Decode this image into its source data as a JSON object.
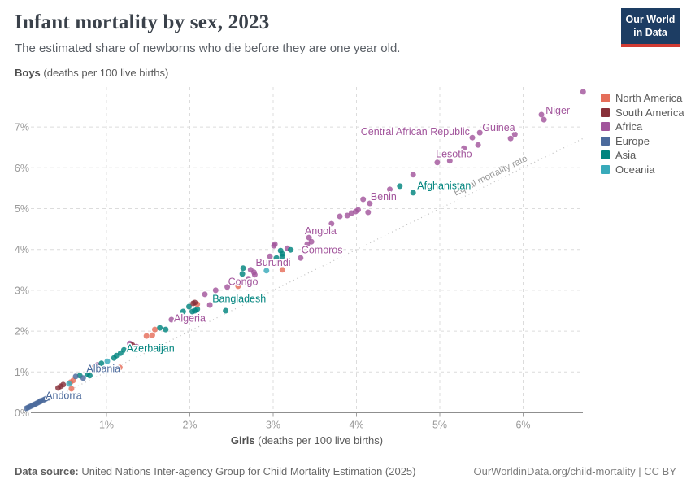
{
  "header": {
    "title": "Infant mortality by sex, 2023",
    "subtitle": "The estimated share of newborns who die before they are one year old.",
    "logo": {
      "line1": "Our World",
      "line2": "in Data"
    }
  },
  "legend": {
    "items": [
      {
        "label": "North America",
        "color": "#E56E5A"
      },
      {
        "label": "South America",
        "color": "#883039"
      },
      {
        "label": "Africa",
        "color": "#A2559C"
      },
      {
        "label": "Europe",
        "color": "#4C6A9C"
      },
      {
        "label": "Asia",
        "color": "#00847E"
      },
      {
        "label": "Oceania",
        "color": "#38AABA"
      }
    ]
  },
  "chart_data": {
    "type": "scatter",
    "title": "Infant mortality by sex, 2023",
    "xlabel": "Girls (deaths per 100 live births)",
    "xlabel_bold": "Girls",
    "xlabel_rest": " (deaths per 100 live births)",
    "ylabel": "Boys (deaths per 100 live births)",
    "ylabel_bold": "Boys",
    "ylabel_rest": " (deaths per 100 live births)",
    "xlim": [
      0,
      6.8
    ],
    "ylim": [
      0,
      7.9
    ],
    "x_ticks": [
      1,
      2,
      3,
      4,
      5,
      6
    ],
    "x_tick_labels": [
      "1%",
      "2%",
      "3%",
      "4%",
      "5%",
      "6%"
    ],
    "y_ticks": [
      0,
      1,
      2,
      3,
      4,
      5,
      6,
      7
    ],
    "y_tick_labels": [
      "0%",
      "1%",
      "2%",
      "3%",
      "4%",
      "5%",
      "6%",
      "7%"
    ],
    "grid": true,
    "legend_position": "right",
    "equal_line": {
      "label": "Equal mortality rate",
      "from": 0.22,
      "to": 6.73
    },
    "series": [
      {
        "name": "Africa",
        "color": "#A2559C",
        "points": [
          [
            6.72,
            7.86
          ],
          [
            6.22,
            7.3
          ],
          [
            6.25,
            7.18
          ],
          [
            5.85,
            6.72
          ],
          [
            5.9,
            6.82
          ],
          [
            5.48,
            6.86
          ],
          [
            5.39,
            6.74
          ],
          [
            5.46,
            6.56
          ],
          [
            5.29,
            6.48
          ],
          [
            5.12,
            6.17
          ],
          [
            4.97,
            6.13
          ],
          [
            4.68,
            5.83
          ],
          [
            4.4,
            5.47
          ],
          [
            4.08,
            5.23
          ],
          [
            4.16,
            5.13
          ],
          [
            4.02,
            4.97
          ],
          [
            3.99,
            4.93
          ],
          [
            3.94,
            4.89
          ],
          [
            4.14,
            4.91
          ],
          [
            3.89,
            4.83
          ],
          [
            3.8,
            4.81
          ],
          [
            3.7,
            4.63
          ],
          [
            3.43,
            4.29
          ],
          [
            3.46,
            4.19
          ],
          [
            3.41,
            4.13
          ],
          [
            3.02,
            4.13
          ],
          [
            3.01,
            4.09
          ],
          [
            3.17,
            4.03
          ],
          [
            2.96,
            3.83
          ],
          [
            3.33,
            3.79
          ],
          [
            2.73,
            3.5
          ],
          [
            2.77,
            3.44
          ],
          [
            2.78,
            3.38
          ],
          [
            2.7,
            3.28
          ],
          [
            2.45,
            3.08
          ],
          [
            2.31,
            3.0
          ],
          [
            2.18,
            2.9
          ],
          [
            2.24,
            2.64
          ],
          [
            1.78,
            2.28
          ],
          [
            1.28,
            1.7
          ],
          [
            1.36,
            1.62
          ],
          [
            0.89,
            1.17
          ]
        ]
      },
      {
        "name": "Asia",
        "color": "#00847E",
        "points": [
          [
            4.52,
            5.55
          ],
          [
            4.68,
            5.39
          ],
          [
            3.09,
            3.97
          ],
          [
            3.11,
            3.89
          ],
          [
            3.21,
            3.99
          ],
          [
            3.04,
            3.79
          ],
          [
            3.11,
            3.83
          ],
          [
            2.63,
            3.4
          ],
          [
            2.64,
            3.54
          ],
          [
            1.99,
            2.6
          ],
          [
            2.09,
            2.54
          ],
          [
            2.03,
            2.48
          ],
          [
            2.43,
            2.5
          ],
          [
            1.92,
            2.48
          ],
          [
            2.06,
            2.5
          ],
          [
            1.64,
            2.08
          ],
          [
            1.71,
            2.04
          ],
          [
            1.21,
            1.54
          ],
          [
            1.17,
            1.46
          ],
          [
            1.12,
            1.4
          ],
          [
            1.09,
            1.34
          ],
          [
            0.94,
            1.21
          ],
          [
            0.68,
            0.91
          ],
          [
            0.8,
            0.91
          ],
          [
            0.77,
            0.95
          ]
        ]
      },
      {
        "name": "North America",
        "color": "#E56E5A",
        "points": [
          [
            3.11,
            3.5
          ],
          [
            2.58,
            3.1
          ],
          [
            2.09,
            2.66
          ],
          [
            1.58,
            2.04
          ],
          [
            1.55,
            1.9
          ],
          [
            1.48,
            1.88
          ],
          [
            1.16,
            1.11
          ],
          [
            0.57,
            0.75
          ],
          [
            0.6,
            0.79
          ],
          [
            0.58,
            0.59
          ],
          [
            0.82,
            1.09
          ]
        ]
      },
      {
        "name": "South America",
        "color": "#883039",
        "points": [
          [
            2.06,
            2.7
          ],
          [
            2.04,
            2.68
          ],
          [
            1.31,
            1.66
          ],
          [
            0.45,
            0.65
          ],
          [
            0.48,
            0.69
          ],
          [
            0.42,
            0.61
          ]
        ]
      },
      {
        "name": "Oceania",
        "color": "#38AABA",
        "points": [
          [
            2.92,
            3.48
          ],
          [
            1.01,
            1.26
          ],
          [
            0.55,
            0.71
          ],
          [
            0.86,
            1.05
          ]
        ]
      },
      {
        "name": "Europe",
        "color": "#4C6A9C",
        "points": [
          [
            0.04,
            0.11
          ],
          [
            0.06,
            0.13
          ],
          [
            0.08,
            0.15
          ],
          [
            0.1,
            0.17
          ],
          [
            0.12,
            0.19
          ],
          [
            0.14,
            0.21
          ],
          [
            0.16,
            0.23
          ],
          [
            0.18,
            0.25
          ],
          [
            0.2,
            0.27
          ],
          [
            0.21,
            0.29
          ],
          [
            0.24,
            0.31
          ],
          [
            0.26,
            0.33
          ],
          [
            0.28,
            0.35
          ],
          [
            0.31,
            0.37
          ],
          [
            0.63,
            0.89
          ],
          [
            0.72,
            0.85
          ]
        ]
      }
    ],
    "point_labels": [
      {
        "text": "Niger",
        "x": 6.27,
        "y": 7.4,
        "anchor": "start",
        "color": "#A2559C"
      },
      {
        "text": "Guinea",
        "x": 5.51,
        "y": 6.98,
        "anchor": "start",
        "color": "#A2559C"
      },
      {
        "text": "Central African Republic",
        "x": 5.36,
        "y": 6.88,
        "anchor": "end",
        "color": "#A2559C"
      },
      {
        "text": "Lesotho",
        "x": 5.17,
        "y": 6.33,
        "anchor": "middle",
        "color": "#A2559C"
      },
      {
        "text": "Afghanistan",
        "x": 4.73,
        "y": 5.56,
        "anchor": "start",
        "color": "#00847E"
      },
      {
        "text": "Benin",
        "x": 4.17,
        "y": 5.29,
        "anchor": "start",
        "color": "#A2559C"
      },
      {
        "text": "Angola",
        "x": 3.57,
        "y": 4.45,
        "anchor": "middle",
        "color": "#A2559C"
      },
      {
        "text": "Comoros",
        "x": 3.34,
        "y": 3.98,
        "anchor": "start",
        "color": "#A2559C"
      },
      {
        "text": "Burundi",
        "x": 2.79,
        "y": 3.68,
        "anchor": "start",
        "color": "#A2559C"
      },
      {
        "text": "Congo",
        "x": 2.46,
        "y": 3.21,
        "anchor": "start",
        "color": "#A2559C"
      },
      {
        "text": "Bangladesh",
        "x": 2.27,
        "y": 2.79,
        "anchor": "start",
        "color": "#00847E"
      },
      {
        "text": "Algeria",
        "x": 1.81,
        "y": 2.31,
        "anchor": "start",
        "color": "#A2559C"
      },
      {
        "text": "Azerbaijan",
        "x": 1.24,
        "y": 1.57,
        "anchor": "start",
        "color": "#00847E"
      },
      {
        "text": "Albania",
        "x": 0.76,
        "y": 1.08,
        "anchor": "start",
        "color": "#4C6A9C"
      },
      {
        "text": "Andorra",
        "x": 0.27,
        "y": 0.42,
        "anchor": "start",
        "color": "#4C6A9C"
      }
    ]
  },
  "footer": {
    "datasource_label": "Data source:",
    "datasource_text": " United Nations Inter-agency Group for Child Mortality Estimation (2025)",
    "link_text": "OurWorldinData.org/child-mortality",
    "separator": " | ",
    "license_text": "CC BY"
  }
}
